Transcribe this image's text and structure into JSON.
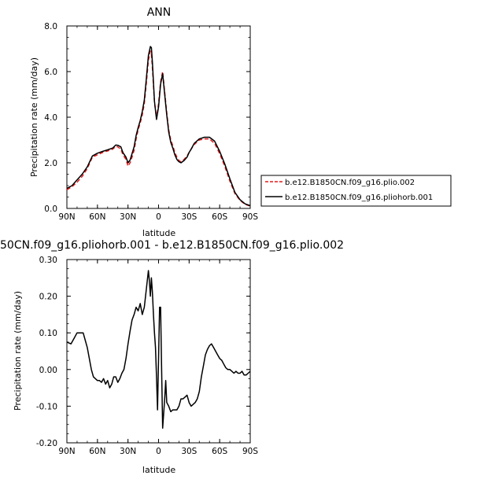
{
  "chart_data": [
    {
      "type": "line",
      "title": "ANN",
      "xlabel": "latitude",
      "ylabel": "Precipitation rate (mm/day)",
      "x_ticks": [
        "90N",
        "60N",
        "30N",
        "0",
        "30S",
        "60S",
        "90S"
      ],
      "y_ticks": [
        "0.0",
        "2.0",
        "4.0",
        "6.0",
        "8.0"
      ],
      "xlim": [
        90,
        -90
      ],
      "ylim": [
        0,
        8
      ],
      "legend_position": "right",
      "series": [
        {
          "name": "b.e12.B1850CN.f09_g16.plio.002",
          "color": "#e31a1c",
          "style": "dashed",
          "x": [
            90,
            85,
            80,
            75,
            70,
            65,
            60,
            55,
            50,
            45,
            42,
            40,
            37,
            35,
            32,
            30,
            28,
            26,
            24,
            22,
            20,
            18,
            16,
            14,
            12,
            10,
            8,
            7,
            6,
            4,
            2,
            0,
            -2,
            -4,
            -6,
            -8,
            -10,
            -12,
            -14,
            -16,
            -18,
            -20,
            -22,
            -25,
            -28,
            -30,
            -32,
            -35,
            -40,
            -45,
            -50,
            -55,
            -60,
            -65,
            -70,
            -75,
            -80,
            -85,
            -90
          ],
          "y": [
            0.82,
            0.95,
            1.15,
            1.4,
            1.75,
            2.25,
            2.35,
            2.45,
            2.52,
            2.6,
            2.72,
            2.7,
            2.6,
            2.35,
            2.15,
            1.85,
            2.0,
            2.25,
            2.55,
            3.05,
            3.45,
            3.75,
            4.1,
            4.6,
            5.5,
            6.5,
            6.9,
            6.75,
            6.15,
            4.65,
            3.95,
            4.6,
            5.55,
            6.0,
            5.1,
            4.2,
            3.45,
            3.0,
            2.75,
            2.45,
            2.25,
            2.1,
            2.05,
            2.15,
            2.3,
            2.45,
            2.6,
            2.8,
            3.0,
            3.05,
            3.05,
            2.85,
            2.4,
            1.85,
            1.2,
            0.65,
            0.35,
            0.18,
            0.1
          ]
        },
        {
          "name": "b.e12.B1850CN.f09_g16.pliohorb.001",
          "color": "#000000",
          "style": "solid",
          "x": [
            90,
            85,
            80,
            75,
            70,
            65,
            60,
            55,
            50,
            45,
            42,
            40,
            37,
            35,
            32,
            30,
            28,
            26,
            24,
            22,
            20,
            18,
            16,
            14,
            12,
            10,
            8,
            7,
            6,
            4,
            2,
            0,
            -2,
            -4,
            -6,
            -8,
            -10,
            -12,
            -14,
            -16,
            -18,
            -20,
            -22,
            -25,
            -28,
            -30,
            -32,
            -35,
            -40,
            -45,
            -50,
            -55,
            -60,
            -65,
            -70,
            -75,
            -80,
            -85,
            -90
          ],
          "y": [
            0.88,
            1.0,
            1.25,
            1.5,
            1.82,
            2.3,
            2.42,
            2.5,
            2.57,
            2.65,
            2.78,
            2.77,
            2.7,
            2.45,
            2.25,
            2.0,
            2.12,
            2.4,
            2.7,
            3.2,
            3.55,
            3.85,
            4.25,
            4.75,
            5.7,
            6.7,
            7.1,
            7.05,
            6.4,
            4.7,
            3.9,
            4.45,
            5.45,
            5.9,
            5.0,
            4.1,
            3.35,
            2.9,
            2.65,
            2.35,
            2.15,
            2.05,
            2.0,
            2.1,
            2.25,
            2.45,
            2.6,
            2.85,
            3.05,
            3.12,
            3.12,
            2.95,
            2.5,
            1.95,
            1.3,
            0.7,
            0.38,
            0.2,
            0.12
          ]
        }
      ]
    },
    {
      "type": "line",
      "title": "50CN.f09_g16.pliohorb.001 - b.e12.B1850CN.f09_g16.plio.002",
      "xlabel": "latitude",
      "ylabel": "Precipitation rate (mm/day)",
      "x_ticks": [
        "90N",
        "60N",
        "30N",
        "0",
        "30S",
        "60S",
        "90S"
      ],
      "y_ticks": [
        "-0.20",
        "-0.10",
        "0.00",
        "0.10",
        "0.20",
        "0.30"
      ],
      "xlim": [
        90,
        -90
      ],
      "ylim": [
        -0.2,
        0.3
      ],
      "series": [
        {
          "color": "#000000",
          "style": "solid",
          "x": [
            90,
            86,
            83,
            80,
            76,
            74,
            72,
            70,
            68,
            66,
            64,
            62,
            60,
            58,
            56,
            54,
            52,
            50,
            48,
            46,
            44,
            42,
            40,
            38,
            36,
            34,
            32,
            30,
            28,
            26,
            24,
            22,
            20,
            18,
            16,
            14,
            12,
            10,
            9,
            8,
            7,
            6,
            5,
            4,
            3,
            2,
            1,
            0,
            -1,
            -2,
            -3,
            -4,
            -5,
            -6,
            -7,
            -8,
            -10,
            -12,
            -14,
            -16,
            -18,
            -20,
            -22,
            -24,
            -26,
            -28,
            -30,
            -32,
            -34,
            -36,
            -38,
            -40,
            -42,
            -44,
            -46,
            -48,
            -50,
            -52,
            -54,
            -56,
            -58,
            -60,
            -62,
            -64,
            -66,
            -68,
            -70,
            -72,
            -74,
            -76,
            -78,
            -80,
            -82,
            -84,
            -86,
            -88,
            -90
          ],
          "y": [
            0.075,
            0.07,
            0.085,
            0.1,
            0.1,
            0.1,
            0.08,
            0.06,
            0.03,
            0.0,
            -0.02,
            -0.025,
            -0.03,
            -0.03,
            -0.035,
            -0.025,
            -0.04,
            -0.03,
            -0.05,
            -0.04,
            -0.02,
            -0.02,
            -0.035,
            -0.025,
            -0.01,
            0.0,
            0.03,
            0.07,
            0.105,
            0.135,
            0.15,
            0.17,
            0.16,
            0.18,
            0.15,
            0.17,
            0.22,
            0.27,
            0.24,
            0.2,
            0.25,
            0.21,
            0.15,
            0.1,
            0.06,
            -0.02,
            -0.11,
            0.03,
            0.17,
            0.17,
            0.0,
            -0.16,
            -0.12,
            -0.08,
            -0.03,
            -0.09,
            -0.1,
            -0.115,
            -0.11,
            -0.11,
            -0.11,
            -0.1,
            -0.08,
            -0.08,
            -0.075,
            -0.07,
            -0.09,
            -0.1,
            -0.095,
            -0.09,
            -0.08,
            -0.06,
            -0.02,
            0.01,
            0.04,
            0.055,
            0.065,
            0.07,
            0.06,
            0.05,
            0.04,
            0.03,
            0.025,
            0.015,
            0.005,
            0.0,
            0.0,
            -0.005,
            -0.01,
            -0.005,
            -0.01,
            -0.01,
            -0.005,
            -0.015,
            -0.015,
            -0.01,
            -0.005
          ]
        }
      ]
    }
  ]
}
